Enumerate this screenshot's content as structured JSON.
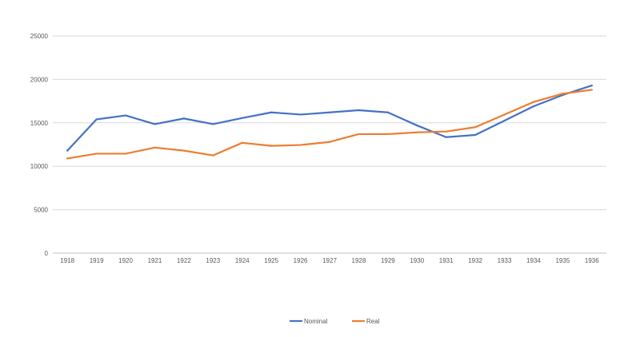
{
  "chart_data": {
    "type": "line",
    "title": "",
    "xlabel": "",
    "ylabel": "",
    "categories": [
      "1918",
      "1919",
      "1920",
      "1921",
      "1922",
      "1923",
      "1924",
      "1925",
      "1926",
      "1927",
      "1928",
      "1929",
      "1930",
      "1931",
      "1932",
      "1933",
      "1934",
      "1935",
      "1936"
    ],
    "ylim": [
      0,
      25000
    ],
    "yticks": [
      0,
      5000,
      10000,
      15000,
      20000,
      25000
    ],
    "grid": true,
    "legend_position": "bottom",
    "series": [
      {
        "name": "Nominal",
        "color": "#4472c4",
        "values": [
          11800,
          15400,
          15850,
          14850,
          15500,
          14850,
          15550,
          16200,
          15950,
          16200,
          16450,
          16200,
          14700,
          13350,
          13600,
          15250,
          16900,
          18200,
          19300
        ]
      },
      {
        "name": "Real",
        "color": "#ed7d31",
        "values": [
          10900,
          11450,
          11450,
          12150,
          11800,
          11250,
          12700,
          12350,
          12450,
          12800,
          13700,
          13700,
          13900,
          14000,
          14500,
          15950,
          17400,
          18350,
          18800
        ]
      }
    ]
  }
}
